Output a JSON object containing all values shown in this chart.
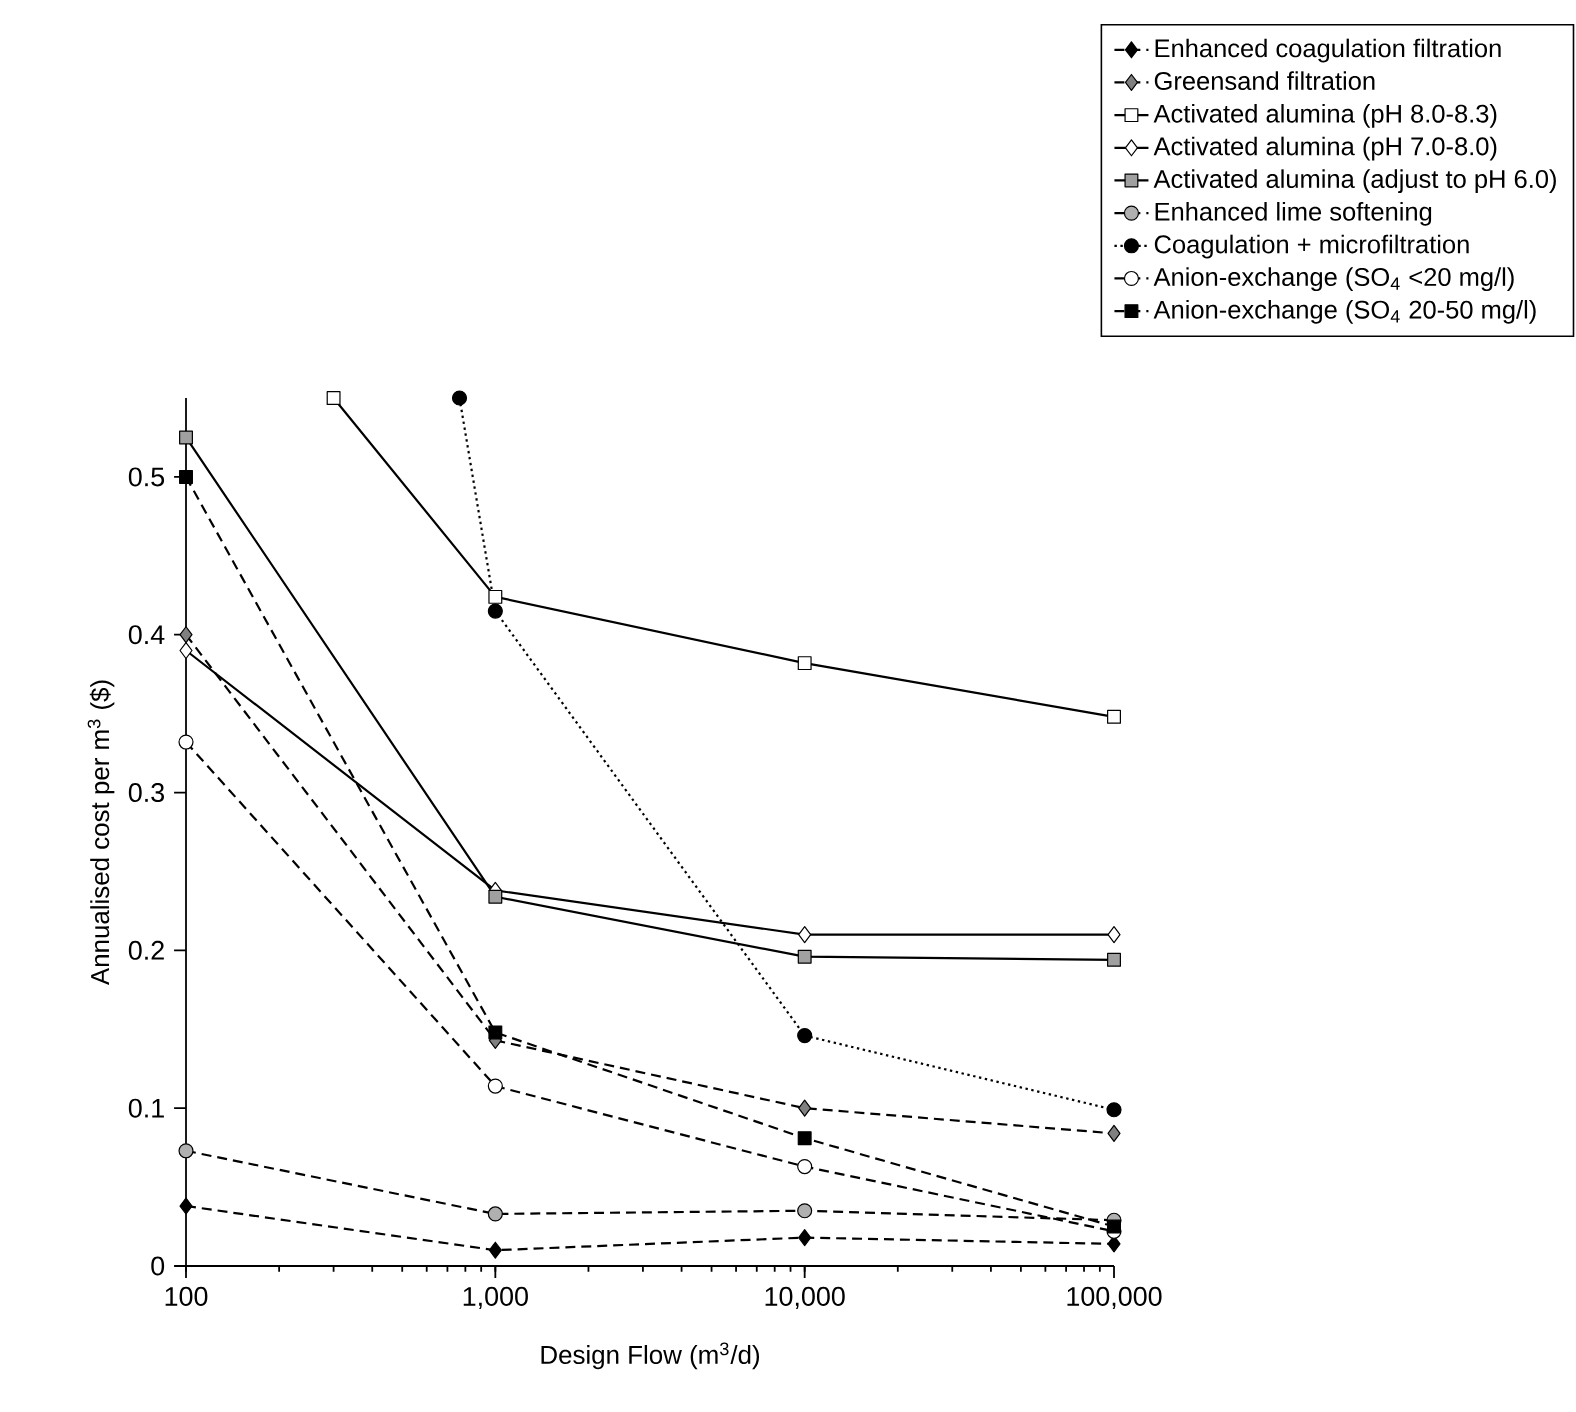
{
  "chart_data": {
    "type": "line",
    "xlabel": "Design Flow (m$^{3}$/d)",
    "ylabel": "Annualised cost  per m$^{3}$ ($)",
    "x": [
      100,
      1000,
      10000,
      100000
    ],
    "log": "x",
    "xlim": [
      100,
      100000
    ],
    "xticks": [
      100,
      {
        "value": 1000,
        "label": "1,000"
      },
      {
        "value": 10000,
        "label": "10,000"
      },
      {
        "value": 100000,
        "label": "100,000"
      }
    ],
    "ylim": [
      0,
      0.55
    ],
    "yticks": [
      0,
      0.1,
      0.2,
      0.3,
      0.4,
      0.5
    ],
    "grid": false,
    "legend": "top right",
    "series": [
      {
        "name": "Enhanced coagulation filtration",
        "color": "#000000",
        "marker": "diamond",
        "line_style": "dashed",
        "values": [
          0.038,
          0.01,
          0.018,
          0.014
        ]
      },
      {
        "name": "Greensand filtration",
        "color": "#808080",
        "marker": "diamond",
        "line_style": "dashed",
        "values": [
          0.4,
          0.143,
          0.1,
          0.084
        ]
      },
      {
        "name": "Activated alumina (pH 8.0-8.3)",
        "color": "#ffffff",
        "marker": "square",
        "line_style": "solid",
        "x": [
          300,
          1000,
          10000,
          100000
        ],
        "values": [
          0.55,
          0.424,
          0.382,
          0.348
        ]
      },
      {
        "name": "Activated alumina (pH 7.0-8.0)",
        "color": "#ffffff",
        "marker": "diamond",
        "line_style": "solid",
        "values": [
          0.39,
          0.238,
          0.21,
          0.21
        ]
      },
      {
        "name": "Activated alumina (adjust to pH 6.0)",
        "color": "#a0a0a0",
        "marker": "square",
        "line_style": "solid",
        "values": [
          0.525,
          0.234,
          0.196,
          0.194
        ]
      },
      {
        "name": "Enhanced lime softening",
        "color": "#b0b0b0",
        "marker": "circle",
        "line_style": "dashed",
        "values": [
          0.073,
          0.033,
          0.035,
          0.029
        ]
      },
      {
        "name": "Coagulation + microfiltration",
        "color": "#000000",
        "marker": "circle",
        "line_style": "dotted",
        "x": [
          766,
          1000,
          10000,
          100000
        ],
        "values": [
          0.55,
          0.415,
          0.146,
          0.099
        ]
      },
      {
        "name": "Anion-exchange (SO$_{4}$ <20 mg/l)",
        "color": "#ffffff",
        "marker": "circle",
        "line_style": "dashed",
        "values": [
          0.332,
          0.114,
          0.063,
          0.022
        ]
      },
      {
        "name": "Anion-exchange (SO$_{4}$ 20-50 mg/l)",
        "color": "#000000",
        "marker": "square",
        "line_style": "dashed",
        "values": [
          0.5,
          0.148,
          0.081,
          0.025
        ]
      }
    ]
  }
}
